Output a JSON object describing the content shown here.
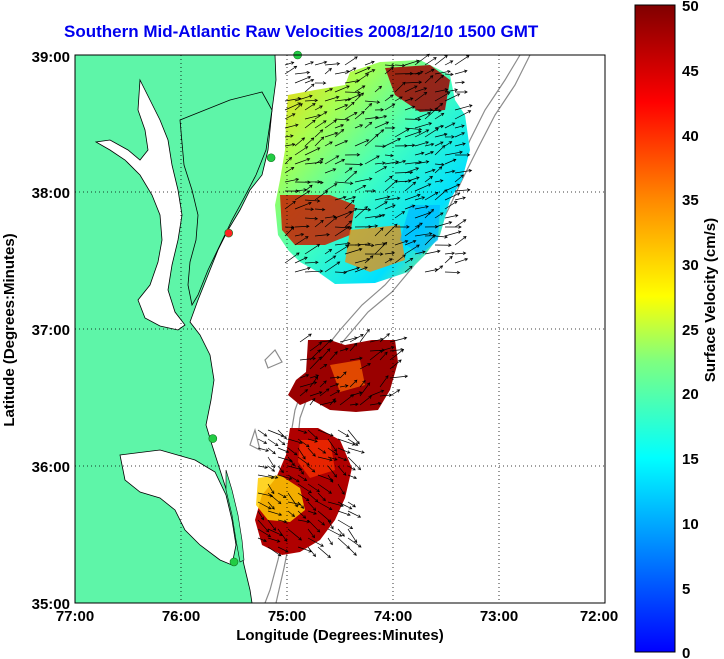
{
  "title": "Southern Mid-Atlantic Raw Velocities 2008/12/10 1500 GMT",
  "x_axis": {
    "label": "Longitude (Degrees:Minutes)",
    "ticks": [
      "77:00",
      "76:00",
      "75:00",
      "74:00",
      "73:00",
      "72:00"
    ]
  },
  "y_axis": {
    "label": "Latitude (Degrees:Minutes)",
    "ticks": [
      "39:00",
      "38:00",
      "37:00",
      "36:00",
      "35:00"
    ]
  },
  "colorbar": {
    "label": "Surface Velocity (cm/s)",
    "ticks": [
      "50",
      "45",
      "40",
      "35",
      "30",
      "25",
      "20",
      "15",
      "10",
      "5",
      "0"
    ],
    "min": 0,
    "max": 50,
    "colormap": "jet"
  },
  "colors": {
    "land": "#5ef5a8",
    "coastline": "#000000",
    "bathymetry": "#8c8c8c",
    "station": "#22cc44",
    "station_alert": "#ff2222",
    "title": "#0000ee"
  },
  "stations": [
    {
      "lon": -74.9,
      "lat": 39.0,
      "status": "ok"
    },
    {
      "lon": -75.15,
      "lat": 38.25,
      "status": "ok"
    },
    {
      "lon": -75.55,
      "lat": 37.7,
      "status": "alert"
    },
    {
      "lon": -75.7,
      "lat": 36.2,
      "status": "ok"
    },
    {
      "lon": -75.5,
      "lat": 35.3,
      "status": "ok"
    }
  ]
}
